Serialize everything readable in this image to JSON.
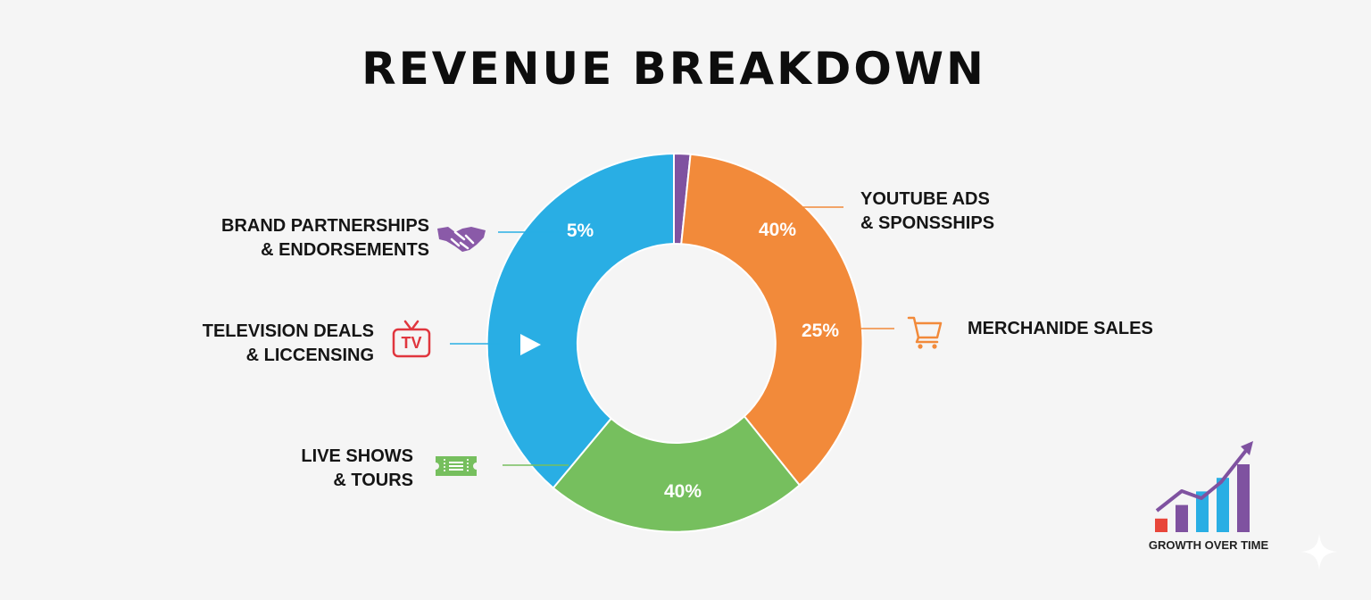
{
  "title": "REVENUE BREAKDOWN",
  "chart_data": {
    "type": "pie",
    "title": "REVENUE BREAKDOWN",
    "slices": [
      {
        "name": "YOUTUBE ADS & SPONSSHIPS",
        "label": "40%",
        "value": 40,
        "color": "#f28a3a"
      },
      {
        "name": "MERCHANIDE SALES",
        "label": "25%",
        "value": 25,
        "color": "#f28a3a"
      },
      {
        "name": "LIVE SHOWS & TOURS",
        "label": "40%",
        "value": 40,
        "color": "#76bf5e"
      },
      {
        "name": "TELEVISION DEALS & LICCENSING",
        "label": "",
        "value": 0,
        "color": "#29aee4"
      },
      {
        "name": "BRAND PARTNERSHIPS & ENDORSEMENTS",
        "label": "5%",
        "value": 5,
        "color": "#29aee4"
      }
    ],
    "colors": {
      "orange": "#f28a3a",
      "green": "#76bf5e",
      "blue": "#29aee4",
      "purple": "#7f52a0"
    }
  },
  "labels": {
    "youtube": {
      "line1": "YOUTUBE ADS",
      "line2": "& SPONSSHIPS"
    },
    "merch": {
      "line1": "MERCHANIDE SALES"
    },
    "live": {
      "line1": "LIVE SHOWS",
      "line2": "& TOURS"
    },
    "tv": {
      "line1": "TELEVISION DEALS",
      "line2": "& LICCENSING"
    },
    "brand": {
      "line1": "BRAND PARTNERSHIPS",
      "line2": "& ENDORSEMENTS"
    }
  },
  "icons": {
    "brand": "handshake-icon",
    "tv": "tv-icon",
    "live": "ticket-icon",
    "merch": "shopping-cart-icon",
    "play": "play-icon",
    "growth": "growth-chart-icon"
  },
  "tv_icon_text": "TV",
  "growth": {
    "caption": "GROWTH OVER TIME",
    "bars": [
      1,
      2,
      3,
      4,
      5
    ],
    "bar_colors": [
      "#e8463a",
      "#7f52a0",
      "#29aee4",
      "#29aee4",
      "#7f52a0"
    ]
  }
}
